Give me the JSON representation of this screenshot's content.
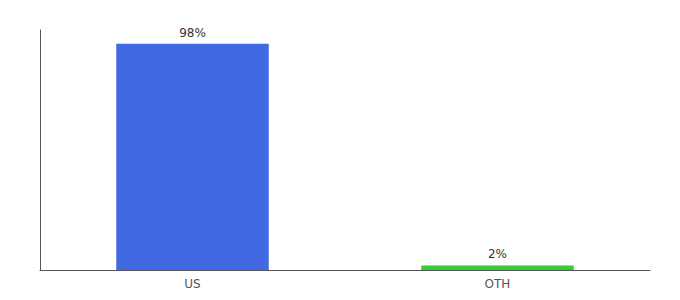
{
  "chart_data": {
    "type": "bar",
    "categories": [
      "US",
      "OTH"
    ],
    "values": [
      98,
      2
    ],
    "value_labels": [
      "98%",
      "2%"
    ],
    "data_labels": true,
    "colors": [
      "#4169e1",
      "#33cc33"
    ],
    "ylim": [
      0,
      104
    ],
    "tick_labels": "x",
    "grid": false
  }
}
